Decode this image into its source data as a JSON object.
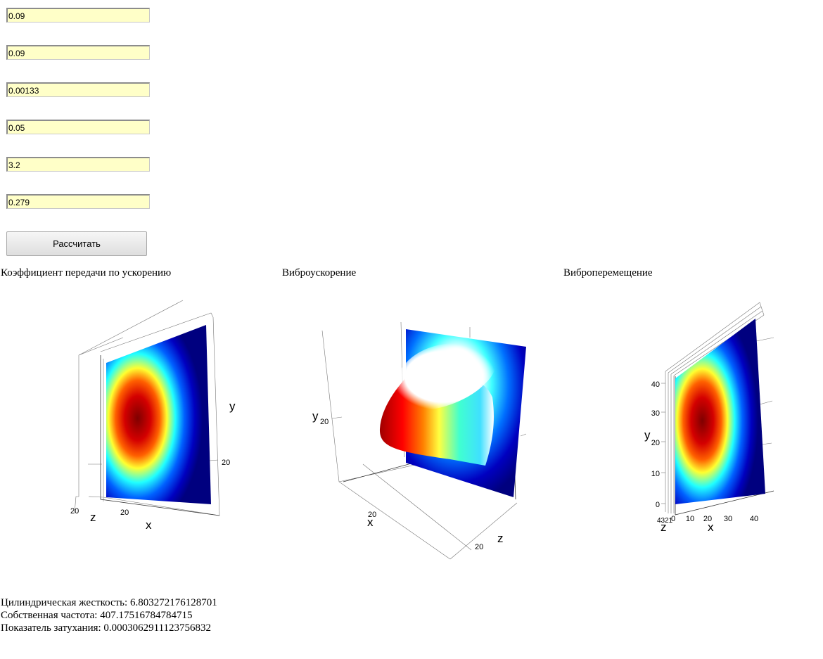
{
  "inputs": {
    "field1": "0.09",
    "field2": "0.09",
    "field3": "0.00133",
    "field4": "0.05",
    "field5": "3.2",
    "field6": "0.279"
  },
  "calculate_button": "Рассчитать",
  "plots": {
    "transfer": {
      "title": "Коэффициент передачи по ускорению",
      "axis_x": "x",
      "axis_y": "y",
      "axis_z": "z",
      "tick_x": "20",
      "tick_y": "20",
      "tick_z": "20"
    },
    "accel": {
      "title": "Виброускорение",
      "axis_x": "x",
      "axis_y": "y",
      "axis_z": "z",
      "tick_x": "20",
      "tick_y": "20",
      "tick_z": "20"
    },
    "disp": {
      "title": "Виброперемещение",
      "axis_x": "x",
      "axis_y": "y",
      "axis_z": "z",
      "y_ticks": [
        "40",
        "30",
        "20",
        "10",
        "0"
      ],
      "x_ticks": [
        "0",
        "10",
        "20",
        "30",
        "40"
      ],
      "z_ticks": "4321"
    }
  },
  "colormap": [
    "#00007f",
    "#0000ff",
    "#00ffff",
    "#ffff00",
    "#ff0000",
    "#7f0000"
  ],
  "results": {
    "stiffness": "Цилиндрическая жесткость: 6.803272176128701",
    "frequency": "Собственная частота: 407.17516784784715",
    "damping": "Показатель затухания: 0.0003062911123756832"
  }
}
